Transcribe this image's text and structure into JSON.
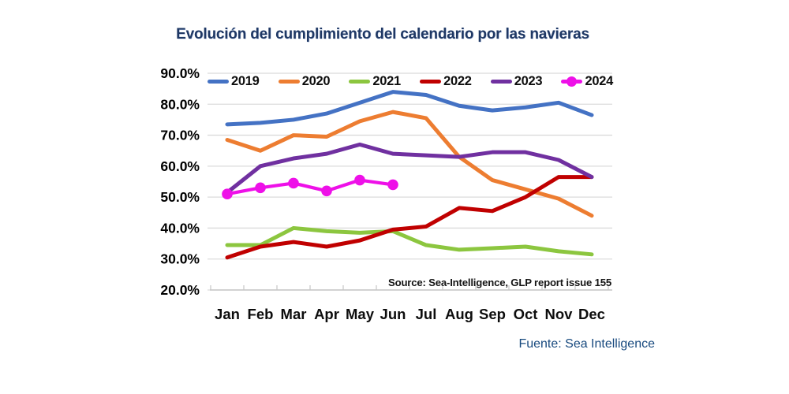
{
  "colors": {
    "background": "#FFFFFF",
    "title": "#1F3864",
    "footer": "#17497E",
    "gridline": "#DBDBDB",
    "axis": "#C6C6C6",
    "tick_label": "#000000"
  },
  "chart_data": {
    "type": "line",
    "title": "Evolución del cumplimiento del calendario por las navieras",
    "categories": [
      "Jan",
      "Feb",
      "Mar",
      "Apr",
      "May",
      "Jun",
      "Jul",
      "Aug",
      "Sep",
      "Oct",
      "Nov",
      "Dec"
    ],
    "y_ticks": [
      "90.0%",
      "80.0%",
      "70.0%",
      "60.0%",
      "50.0%",
      "40.0%",
      "30.0%",
      "20.0%"
    ],
    "y_range": {
      "min": 20,
      "max": 90,
      "step": 10
    },
    "unit": "percent schedule reliability",
    "grid": true,
    "legend_position": "top",
    "series": [
      {
        "name": "2019",
        "color": "#4472C4",
        "marker": false,
        "values": [
          73.5,
          74,
          75,
          77,
          80.5,
          84,
          83,
          79.5,
          78,
          79,
          80.5,
          76.5
        ]
      },
      {
        "name": "2020",
        "color": "#ED7D31",
        "marker": false,
        "values": [
          68.5,
          65,
          70,
          69.5,
          74.5,
          77.5,
          75.5,
          63,
          55.5,
          52.5,
          49.5,
          44
        ]
      },
      {
        "name": "2021",
        "color": "#8CC63F",
        "marker": false,
        "values": [
          34.5,
          34.5,
          40,
          39,
          38.5,
          39,
          34.5,
          33,
          33.5,
          34,
          32.5,
          31.5
        ]
      },
      {
        "name": "2022",
        "color": "#C00000",
        "marker": false,
        "values": [
          30.5,
          34,
          35.5,
          34,
          36,
          39.5,
          40.5,
          46.5,
          45.5,
          50,
          56.5,
          56.5
        ]
      },
      {
        "name": "2023",
        "color": "#7030A0",
        "marker": false,
        "values": [
          51.5,
          60,
          62.5,
          64,
          67,
          64,
          63.5,
          63,
          64.5,
          64.5,
          62,
          56.5
        ]
      },
      {
        "name": "2024",
        "color": "#EE10E8",
        "marker": true,
        "values": [
          51,
          53,
          54.5,
          52,
          55.5,
          54
        ]
      }
    ],
    "source_note": "Source: Sea-Intelligence, GLP report issue 155",
    "footer_note": "Fuente: Sea Intelligence"
  }
}
